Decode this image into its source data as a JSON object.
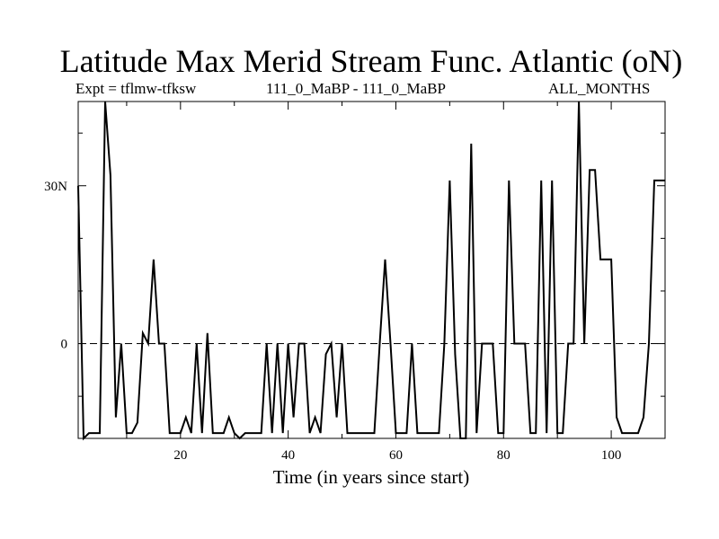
{
  "header": {
    "title": "Latitude Max Merid Stream Func. Atlantic (oN)",
    "expt": "Expt = tflmw-tfksw",
    "runs": "111_0_MaBP - 111_0_MaBP",
    "months": "ALL_MONTHS"
  },
  "chart_data": {
    "type": "line",
    "title": "Latitude Max Merid Stream Func. Atlantic (oN)",
    "xlabel": "Time (in years since start)",
    "ylabel": "",
    "xlim": [
      1,
      110
    ],
    "ylim": [
      -18,
      46
    ],
    "x_ticks": [
      20,
      40,
      60,
      80,
      100
    ],
    "x_tick_labels": [
      "20",
      "40",
      "60",
      "80",
      "100"
    ],
    "y_ticks": [
      0,
      30
    ],
    "y_tick_labels": [
      "0",
      "30N"
    ],
    "reference_line": {
      "y": 0,
      "style": "dashed"
    },
    "grid": false,
    "series": [
      {
        "x": [
          1,
          2,
          3,
          4,
          5,
          6,
          7,
          8,
          9,
          10,
          11,
          12,
          13,
          14,
          15,
          16,
          17,
          18,
          19,
          20,
          21,
          22,
          23,
          24,
          25,
          26,
          27,
          28,
          29,
          30,
          31,
          32,
          33,
          34,
          35,
          36,
          37,
          38,
          39,
          40,
          41,
          42,
          43,
          44,
          45,
          46,
          47,
          48,
          49,
          50,
          51,
          52,
          53,
          54,
          55,
          56,
          57,
          58,
          59,
          60,
          61,
          62,
          63,
          64,
          65,
          66,
          67,
          68,
          69,
          70,
          71,
          72,
          73,
          74,
          75,
          76,
          77,
          78,
          79,
          80,
          81,
          82,
          83,
          84,
          85,
          86,
          87,
          88,
          89,
          90,
          91,
          92,
          93,
          94,
          95,
          96,
          97,
          98,
          99,
          100,
          101,
          102,
          103,
          104,
          105,
          106,
          107,
          108,
          109,
          110
        ],
        "y": [
          30,
          -19,
          -17,
          -17,
          -17,
          46,
          32,
          -14,
          0,
          -17,
          -17,
          -15,
          2,
          0,
          16,
          0,
          0,
          -17,
          -17,
          -17,
          -14,
          -17,
          0,
          -17,
          2,
          -17,
          -17,
          -17,
          -14,
          -17,
          -19,
          -17,
          -17,
          -17,
          -17,
          0,
          -17,
          0,
          -17,
          0,
          -14,
          0,
          0,
          -17,
          -14,
          -17,
          -2,
          0,
          -14,
          0,
          -17,
          -17,
          -17,
          -17,
          -17,
          -17,
          0,
          16,
          0,
          -17,
          -17,
          -17,
          0,
          -17,
          -17,
          -17,
          -17,
          -17,
          0,
          31,
          -2,
          -19,
          -19,
          38,
          -17,
          0,
          0,
          0,
          -17,
          -17,
          31,
          0,
          0,
          0,
          -17,
          -17,
          31,
          -17,
          31,
          -17,
          -17,
          0,
          0,
          46,
          0,
          33,
          33,
          16,
          16,
          16,
          -14,
          -17,
          -17,
          -17,
          -17,
          -14,
          0,
          31,
          31,
          31
        ]
      }
    ]
  }
}
